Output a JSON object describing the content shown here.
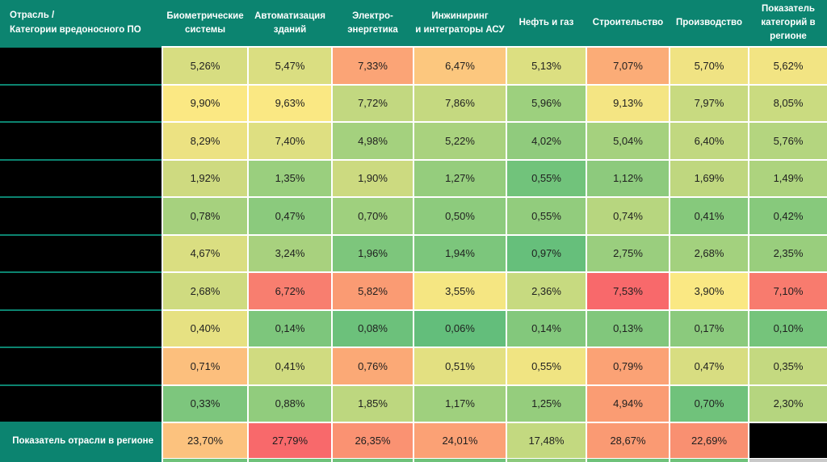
{
  "table": {
    "corner_header": "Отрасль /\nКатегории вредоносного ПО",
    "columns": [
      "Биометрические\nсистемы",
      "Автоматизация\nзданий",
      "Электро-\nэнергетика",
      "Инжиниринг\nи интеграторы АСУ",
      "Нефть и газ",
      "Строительство",
      "Производство",
      "Показатель\nкатегорий в\nрегионе"
    ],
    "row_labels_redacted": true,
    "data_rows": [
      {
        "cells": [
          "5,26%",
          "5,47%",
          "7,33%",
          "6,47%",
          "5,13%",
          "7,07%",
          "5,70%",
          "5,62%"
        ],
        "colors": [
          "#D7DD81",
          "#DADE81",
          "#FBA476",
          "#FCC77E",
          "#DCDF81",
          "#FBAC77",
          "#F0E383",
          "#F2E483"
        ]
      },
      {
        "cells": [
          "9,90%",
          "9,63%",
          "7,72%",
          "7,86%",
          "5,96%",
          "9,13%",
          "7,97%",
          "8,05%"
        ],
        "colors": [
          "#FBE883",
          "#FAE883",
          "#C2D880",
          "#C5D980",
          "#9DD07E",
          "#F4E583",
          "#C8DA80",
          "#CADB80"
        ]
      },
      {
        "cells": [
          "8,29%",
          "7,40%",
          "4,98%",
          "5,22%",
          "4,02%",
          "5,04%",
          "6,40%",
          "5,76%"
        ],
        "colors": [
          "#ECE282",
          "#DEDF81",
          "#A4D17E",
          "#A9D27E",
          "#90CB7D",
          "#A5D17E",
          "#C1D880",
          "#B4D57F"
        ]
      },
      {
        "cells": [
          "1,92%",
          "1,35%",
          "1,90%",
          "1,27%",
          "0,55%",
          "1,12%",
          "1,69%",
          "1,49%"
        ],
        "colors": [
          "#CEDA80",
          "#9ACF7E",
          "#CCDA80",
          "#95CD7D",
          "#71C37B",
          "#8DCA7D",
          "#BFD77F",
          "#ADD37E"
        ]
      },
      {
        "cells": [
          "0,78%",
          "0,47%",
          "0,70%",
          "0,50%",
          "0,55%",
          "0,74%",
          "0,41%",
          "0,42%"
        ],
        "colors": [
          "#A6D17E",
          "#8BCA7D",
          "#9FD07E",
          "#8DCB7D",
          "#92CC7D",
          "#B7D67F",
          "#86C97C",
          "#87C97C"
        ]
      },
      {
        "cells": [
          "4,67%",
          "3,24%",
          "1,96%",
          "1,94%",
          "0,97%",
          "2,75%",
          "2,68%",
          "2,35%"
        ],
        "colors": [
          "#DADE81",
          "#A8D17E",
          "#7DC67C",
          "#7CC67C",
          "#66BF7B",
          "#9ACE7E",
          "#A3D17E",
          "#99CE7D"
        ]
      },
      {
        "cells": [
          "2,68%",
          "6,72%",
          "5,82%",
          "3,55%",
          "2,36%",
          "7,53%",
          "3,90%",
          "7,10%"
        ],
        "colors": [
          "#CFDB80",
          "#F87E6F",
          "#FA9B73",
          "#F5E682",
          "#C7DA80",
          "#F8696B",
          "#FAE883",
          "#F87B6E"
        ]
      },
      {
        "cells": [
          "0,40%",
          "0,14%",
          "0,08%",
          "0,06%",
          "0,14%",
          "0,13%",
          "0,17%",
          "0,10%"
        ],
        "colors": [
          "#E6E182",
          "#7DC67C",
          "#6CC17B",
          "#63BE7B",
          "#83C87C",
          "#81C77C",
          "#8BCA7D",
          "#75C47B"
        ]
      },
      {
        "cells": [
          "0,71%",
          "0,41%",
          "0,76%",
          "0,51%",
          "0,55%",
          "0,79%",
          "0,47%",
          "0,35%"
        ],
        "colors": [
          "#FCBF7D",
          "#D0DB80",
          "#FBA976",
          "#E3E081",
          "#F0E482",
          "#FBA275",
          "#D8DD81",
          "#C4D980"
        ]
      },
      {
        "cells": [
          "0,33%",
          "0,88%",
          "1,85%",
          "1,17%",
          "1,25%",
          "4,94%",
          "0,70%",
          "2,30%"
        ],
        "colors": [
          "#7DC67D",
          "#91CC7D",
          "#BDD77F",
          "#9FD07E",
          "#95CD7D",
          "#FA9C73",
          "#70C27B",
          "#B5D57F"
        ]
      }
    ],
    "total_row": {
      "label": "Показатель отрасли в регионе",
      "cells": [
        "23,70%",
        "27,79%",
        "26,35%",
        "24,01%",
        "17,48%",
        "28,67%",
        "22,69%",
        ""
      ],
      "colors": [
        "#FCC27E",
        "#F8696B",
        "#FA9272",
        "#FBA175",
        "#C3D980",
        "#FA9A73",
        "#F99071",
        "#000000"
      ]
    },
    "partial_row_colors": [
      "#6EC27A",
      "#6EC27A",
      "#6EC27A",
      "#6EC27A",
      "#8CCA7D",
      "#6EC27A",
      "#6EC27A",
      "#C9C9C9"
    ],
    "colors": {
      "header_bg": "#0C8470",
      "header_text": "#FFFFFF",
      "row_label_bg": "#000000",
      "grid_gap": "#FFFFFF",
      "cell_text": "#1F1F1F"
    }
  },
  "chart_data": {
    "type": "heatmap",
    "title": "Отрасль / Категории вредоносного ПО",
    "columns": [
      "Биометрические системы",
      "Автоматизация зданий",
      "Электро-энергетика",
      "Инжиниринг и интеграторы АСУ",
      "Нефть и газ",
      "Строительство",
      "Производство",
      "Показатель категорий в регионе"
    ],
    "row_labels_redacted": true,
    "row_count": 10,
    "values_percent": [
      [
        5.26,
        5.47,
        7.33,
        6.47,
        5.13,
        7.07,
        5.7,
        5.62
      ],
      [
        9.9,
        9.63,
        7.72,
        7.86,
        5.96,
        9.13,
        7.97,
        8.05
      ],
      [
        8.29,
        7.4,
        4.98,
        5.22,
        4.02,
        5.04,
        6.4,
        5.76
      ],
      [
        1.92,
        1.35,
        1.9,
        1.27,
        0.55,
        1.12,
        1.69,
        1.49
      ],
      [
        0.78,
        0.47,
        0.7,
        0.5,
        0.55,
        0.74,
        0.41,
        0.42
      ],
      [
        4.67,
        3.24,
        1.96,
        1.94,
        0.97,
        2.75,
        2.68,
        2.35
      ],
      [
        2.68,
        6.72,
        5.82,
        3.55,
        2.36,
        7.53,
        3.9,
        7.1
      ],
      [
        0.4,
        0.14,
        0.08,
        0.06,
        0.14,
        0.13,
        0.17,
        0.1
      ],
      [
        0.71,
        0.41,
        0.76,
        0.51,
        0.55,
        0.79,
        0.47,
        0.35
      ],
      [
        0.33,
        0.88,
        1.85,
        1.17,
        1.25,
        4.94,
        0.7,
        2.3
      ]
    ],
    "total_row": {
      "label": "Показатель отрасли в регионе",
      "values_percent": [
        23.7,
        27.79,
        26.35,
        24.01,
        17.48,
        28.67,
        22.69,
        null
      ]
    },
    "color_scale": {
      "low": "#63BE7B",
      "mid": "#FFEB84",
      "high": "#F8696B"
    },
    "legend_position": "none",
    "grid": true
  }
}
